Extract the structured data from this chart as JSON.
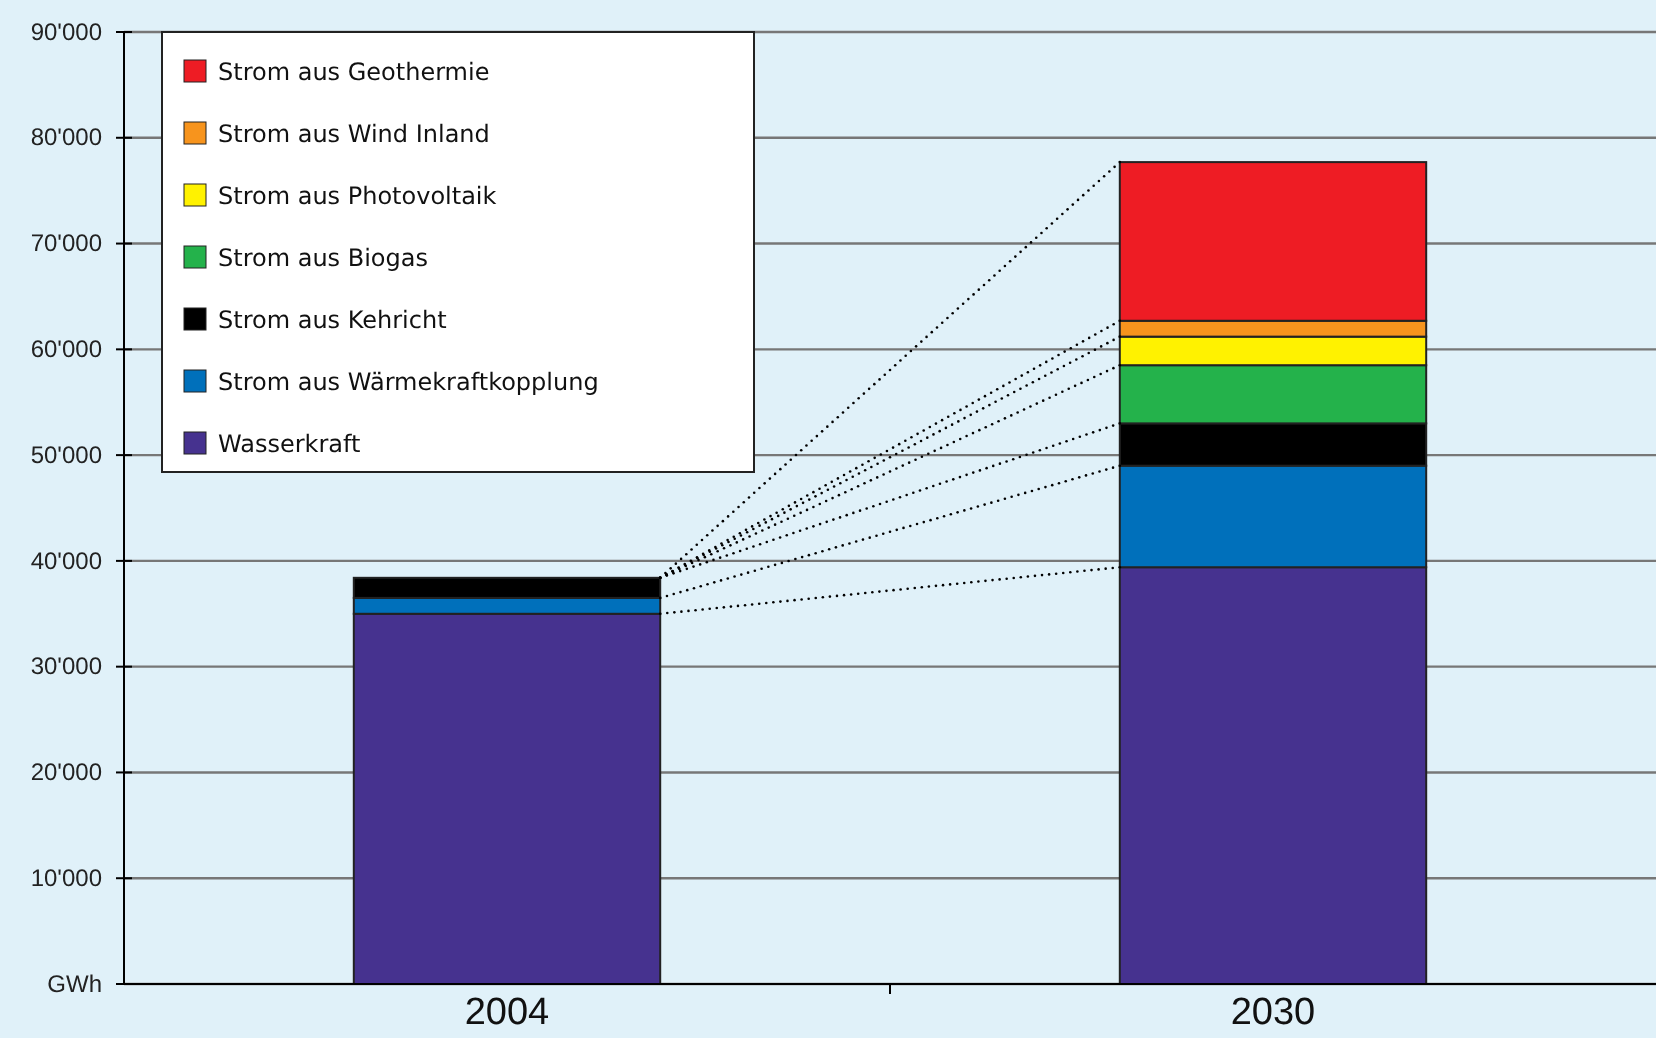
{
  "chart_data": {
    "type": "bar",
    "stacked": true,
    "categories": [
      "2004",
      "2030"
    ],
    "series": [
      {
        "name": "Wasserkraft",
        "color": "#46328f",
        "values": [
          35000,
          39400
        ]
      },
      {
        "name": "Strom aus Wärmekraftkopplung",
        "color": "#0070bb",
        "values": [
          1500,
          9600
        ]
      },
      {
        "name": "Strom aus Kehricht",
        "color": "#000000",
        "values": [
          1900,
          4000
        ]
      },
      {
        "name": "Strom aus Biogas",
        "color": "#24b24b",
        "values": [
          0,
          5500
        ]
      },
      {
        "name": "Strom aus Photovoltaik",
        "color": "#fff200",
        "values": [
          0,
          2700
        ]
      },
      {
        "name": "Strom aus Wind Inland",
        "color": "#f7941d",
        "values": [
          0,
          1500
        ]
      },
      {
        "name": "Strom aus Geothermie",
        "color": "#ee1c24",
        "values": [
          0,
          15000
        ]
      }
    ],
    "ylim": [
      0,
      90000
    ],
    "yticks": [
      {
        "value": 0,
        "label": "GWh"
      },
      {
        "value": 10000,
        "label": "10'000"
      },
      {
        "value": 20000,
        "label": "20'000"
      },
      {
        "value": 30000,
        "label": "30'000"
      },
      {
        "value": 40000,
        "label": "40'000"
      },
      {
        "value": 50000,
        "label": "50'000"
      },
      {
        "value": 60000,
        "label": "60'000"
      },
      {
        "value": 70000,
        "label": "70'000"
      },
      {
        "value": 80000,
        "label": "80'000"
      },
      {
        "value": 90000,
        "label": "90'000"
      }
    ],
    "grid": "y",
    "legend": "top left"
  }
}
